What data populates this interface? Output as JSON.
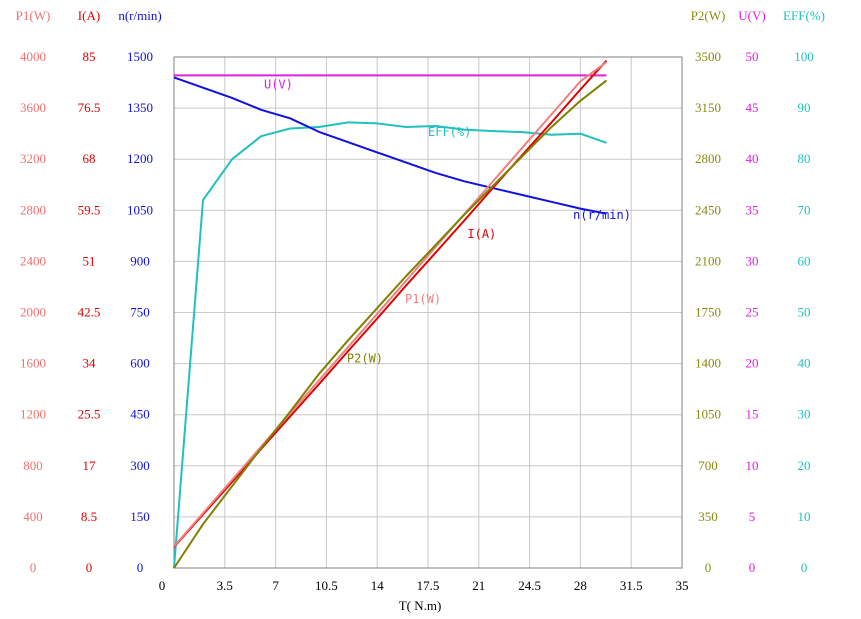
{
  "chart_data": {
    "type": "line",
    "xlabel": "T( N.m)",
    "xlim": [
      0,
      35
    ],
    "x_ticks": [
      "0",
      "3.5",
      "7",
      "10.5",
      "14",
      "17.5",
      "21",
      "24.5",
      "28",
      "31.5",
      "35"
    ],
    "grid": true,
    "axes": [
      {
        "key": "p1",
        "header": "P1(W)",
        "color": "#f07070",
        "side": "left",
        "range": [
          0,
          4000
        ],
        "ticks": [
          "0",
          "400",
          "800",
          "1200",
          "1600",
          "2000",
          "2400",
          "2800",
          "3200",
          "3600",
          "4000"
        ]
      },
      {
        "key": "i",
        "header": "I(A)",
        "color": "#e00000",
        "side": "left",
        "range": [
          0,
          85
        ],
        "ticks": [
          "0",
          "8.5",
          "17",
          "25.5",
          "34",
          "42.5",
          "51",
          "59.5",
          "68",
          "76.5",
          "85"
        ]
      },
      {
        "key": "n",
        "header": "n(r/min)",
        "color": "#1010e0",
        "side": "left",
        "range": [
          0,
          1500
        ],
        "ticks": [
          "0",
          "150",
          "300",
          "450",
          "600",
          "750",
          "900",
          "1050",
          "1200",
          "1350",
          "1500"
        ]
      },
      {
        "key": "p2",
        "header": "P2(W)",
        "color": "#8a8a10",
        "side": "right",
        "range": [
          0,
          3500
        ],
        "ticks": [
          "0",
          "350",
          "700",
          "1050",
          "1400",
          "1750",
          "2100",
          "2450",
          "2800",
          "3150",
          "3500"
        ]
      },
      {
        "key": "u",
        "header": "U(V)",
        "color": "#e020e0",
        "side": "right",
        "range": [
          0,
          50
        ],
        "ticks": [
          "0",
          "5",
          "10",
          "15",
          "20",
          "25",
          "30",
          "35",
          "40",
          "45",
          "50"
        ]
      },
      {
        "key": "eff",
        "header": "EFF(%)",
        "color": "#20c0c0",
        "side": "right",
        "range": [
          0,
          100
        ],
        "ticks": [
          "0",
          "10",
          "20",
          "30",
          "40",
          "50",
          "60",
          "70",
          "80",
          "90",
          "100"
        ]
      }
    ],
    "series": [
      {
        "name": "U(V)",
        "axis": "u",
        "color": "#e020e0",
        "label_x": 6.2,
        "x": [
          0,
          29.8
        ],
        "y": [
          48.2,
          48.2
        ]
      },
      {
        "name": "EFF(%)",
        "axis": "eff",
        "color": "#20c0c0",
        "label_x": 17.5,
        "x": [
          0,
          2,
          4,
          6,
          8,
          10,
          12,
          14,
          16,
          18,
          20,
          22,
          24,
          26,
          28,
          29.8
        ],
        "y": [
          0,
          72,
          80,
          84.5,
          86,
          86.3,
          87.2,
          87,
          86.3,
          86.5,
          85.8,
          85.5,
          85.3,
          84.8,
          85,
          83.2
        ]
      },
      {
        "name": "n(r/min)",
        "axis": "n",
        "color": "#1010e0",
        "label_x": 27.5,
        "x": [
          0,
          2,
          4,
          6,
          8,
          10,
          12,
          14,
          16,
          18,
          20,
          22,
          24,
          26,
          28,
          29.8
        ],
        "y": [
          1440,
          1410,
          1380,
          1345,
          1320,
          1280,
          1250,
          1220,
          1190,
          1160,
          1135,
          1115,
          1095,
          1075,
          1055,
          1040
        ]
      },
      {
        "name": "I(A)",
        "axis": "i",
        "color": "#e00000",
        "label_x": 19.8,
        "x": [
          0,
          2,
          4,
          6,
          8,
          10,
          12,
          14,
          16,
          18,
          20,
          22,
          24,
          26,
          28,
          29.8
        ],
        "y": [
          3.5,
          8.9,
          14.3,
          19.8,
          25.2,
          30.6,
          36.1,
          41.5,
          47.0,
          52.4,
          57.8,
          63.3,
          68.7,
          74.1,
          79.6,
          84.4
        ]
      },
      {
        "name": "P1(W)",
        "axis": "p1",
        "color": "#f08080",
        "label_x": 15.5,
        "x": [
          0,
          2,
          4,
          6,
          8,
          10,
          12,
          14,
          16,
          18,
          20,
          22,
          24,
          26,
          28,
          29.8
        ],
        "y": [
          170,
          430,
          690,
          950,
          1210,
          1470,
          1730,
          1990,
          2250,
          2510,
          2770,
          3030,
          3290,
          3550,
          3810,
          3960
        ]
      },
      {
        "name": "P2(W)",
        "axis": "p2",
        "color": "#808000",
        "label_x": 11.5,
        "x": [
          0,
          2,
          4,
          6,
          8,
          10,
          12,
          14,
          16,
          18,
          20,
          22,
          24,
          26,
          28,
          29.8
        ],
        "y": [
          0,
          300,
          560,
          820,
          1070,
          1330,
          1560,
          1780,
          2000,
          2210,
          2420,
          2620,
          2820,
          3020,
          3200,
          3340
        ]
      }
    ]
  }
}
